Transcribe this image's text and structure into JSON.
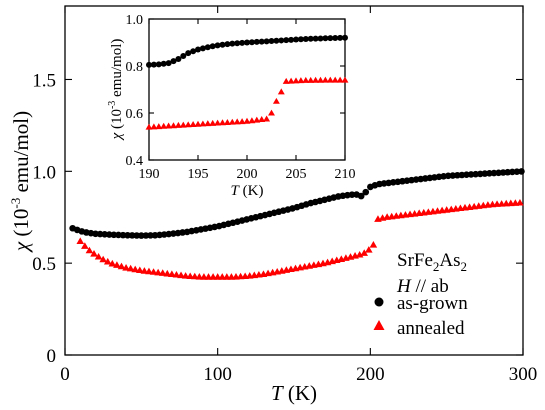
{
  "chart_data": [
    {
      "type": "scatter",
      "title": "",
      "xlabel": "T (K)",
      "ylabel": "χ (10⁻³ emu/mol)",
      "xlim": [
        0,
        300
      ],
      "ylim": [
        0,
        1.9
      ],
      "x_ticks": [
        "0",
        "100",
        "200",
        "300"
      ],
      "y_ticks": [
        "0",
        "0.5",
        "1.0",
        "1.5"
      ],
      "legend_header": [
        "SrFe2As2",
        "H // ab"
      ],
      "legend_position": "right",
      "series": [
        {
          "name": "as-grown",
          "marker": "circle",
          "color": "#000000",
          "x_step": 3,
          "x": [
            5,
            10,
            15,
            20,
            30,
            40,
            50,
            60,
            70,
            80,
            90,
            100,
            110,
            120,
            130,
            140,
            150,
            160,
            170,
            180,
            185,
            190,
            193,
            195,
            198,
            200,
            205,
            210,
            220,
            230,
            240,
            250,
            260,
            270,
            280,
            290,
            300
          ],
          "y": [
            0.69,
            0.675,
            0.665,
            0.66,
            0.655,
            0.652,
            0.65,
            0.652,
            0.66,
            0.67,
            0.685,
            0.7,
            0.72,
            0.74,
            0.76,
            0.78,
            0.8,
            0.825,
            0.845,
            0.865,
            0.87,
            0.875,
            0.87,
            0.86,
            0.9,
            0.915,
            0.93,
            0.935,
            0.945,
            0.955,
            0.965,
            0.975,
            0.98,
            0.985,
            0.99,
            0.995,
            1.0
          ]
        },
        {
          "name": "annealed",
          "marker": "triangle",
          "color": "#ff0000",
          "x_step": 3,
          "x": [
            10,
            15,
            20,
            25,
            30,
            40,
            50,
            60,
            70,
            80,
            90,
            100,
            110,
            120,
            130,
            140,
            150,
            160,
            170,
            180,
            190,
            195,
            198,
            200,
            202,
            203,
            205,
            210,
            220,
            230,
            240,
            250,
            260,
            270,
            280,
            290,
            300
          ],
          "y": [
            0.62,
            0.575,
            0.545,
            0.52,
            0.5,
            0.475,
            0.46,
            0.45,
            0.44,
            0.43,
            0.425,
            0.425,
            0.425,
            0.43,
            0.44,
            0.455,
            0.47,
            0.485,
            0.5,
            0.52,
            0.54,
            0.55,
            0.565,
            0.58,
            0.6,
            0.73,
            0.74,
            0.75,
            0.76,
            0.77,
            0.78,
            0.79,
            0.8,
            0.81,
            0.82,
            0.825,
            0.83
          ]
        }
      ]
    },
    {
      "type": "scatter",
      "title": "",
      "xlabel": "T (K)",
      "ylabel": "χ (10⁻³ emu/mol)",
      "xlim": [
        190,
        210
      ],
      "ylim": [
        0.4,
        1.0
      ],
      "x_ticks": [
        "190",
        "195",
        "200",
        "205",
        "210"
      ],
      "y_ticks": [
        "0.4",
        "0.6",
        "0.8",
        "1.0"
      ],
      "series": [
        {
          "name": "as-grown",
          "marker": "circle",
          "color": "#000000",
          "x_step": 0.5,
          "x": [
            190,
            191,
            192,
            193,
            194,
            195,
            196,
            197,
            198,
            199,
            200,
            202,
            204,
            206,
            208,
            210
          ],
          "y": [
            0.805,
            0.807,
            0.812,
            0.83,
            0.855,
            0.87,
            0.88,
            0.888,
            0.893,
            0.897,
            0.9,
            0.905,
            0.91,
            0.915,
            0.918,
            0.92
          ]
        },
        {
          "name": "annealed",
          "marker": "triangle",
          "color": "#ff0000",
          "x_step": 0.5,
          "x": [
            190,
            192,
            194,
            196,
            198,
            200,
            201,
            202,
            202.5,
            203,
            203.5,
            204,
            205,
            206,
            208,
            210
          ],
          "y": [
            0.54,
            0.545,
            0.55,
            0.555,
            0.56,
            0.565,
            0.57,
            0.575,
            0.6,
            0.65,
            0.69,
            0.735,
            0.737,
            0.739,
            0.74,
            0.74
          ]
        }
      ]
    }
  ]
}
